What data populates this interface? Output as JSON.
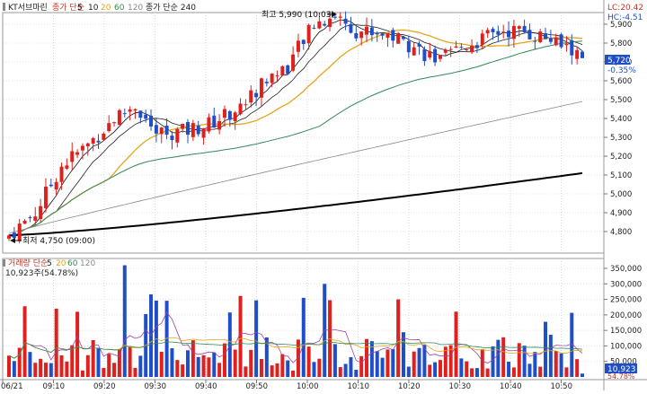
{
  "header": {
    "stock_name": "KT서브마린",
    "ma_price_label": "종가 단순",
    "ma_periods": [
      "5",
      "10",
      "20",
      "60",
      "120"
    ],
    "ma_extra_label": "종가 단순 240",
    "lc": "LC:20.42",
    "hc": "HC:-4.51"
  },
  "volume_header": {
    "label": "거래량 단순",
    "periods": [
      "5",
      "20",
      "60",
      "120"
    ],
    "current": "10,923주(54.78%)"
  },
  "annotations": {
    "high": "최고 5,990 (10:03)",
    "low": "최저 4,750 (09:00)"
  },
  "price_axis": {
    "ticks": [
      "5,900",
      "5,800",
      "5,700",
      "5,600",
      "5,500",
      "5,400",
      "5,300",
      "5,200",
      "5,100",
      "5,000",
      "4,900",
      "4,800"
    ],
    "current_price": "5,720",
    "current_change": "-0.35%"
  },
  "volume_axis": {
    "ticks": [
      "350,000",
      "300,000",
      "250,000",
      "200,000",
      "150,000",
      "100,000",
      "50,000"
    ],
    "current_volume": "10,923",
    "current_pct": "54.78%"
  },
  "time_axis": {
    "labels": [
      "06/21",
      "09:10",
      "09:20",
      "09:30",
      "09:40",
      "09:50",
      "10:00",
      "10:10",
      "10:20",
      "10:30",
      "10:40",
      "10:50"
    ]
  },
  "colors": {
    "up": "#e0201c",
    "down": "#1f4fc8",
    "ma5": "#111111",
    "ma10": "#222222",
    "ma20": "#e4a51a",
    "ma60": "#2f8a55",
    "ma120": "#8a8a8a",
    "ma240": "#000000",
    "axis_tag": "#1f4fc8"
  }
}
